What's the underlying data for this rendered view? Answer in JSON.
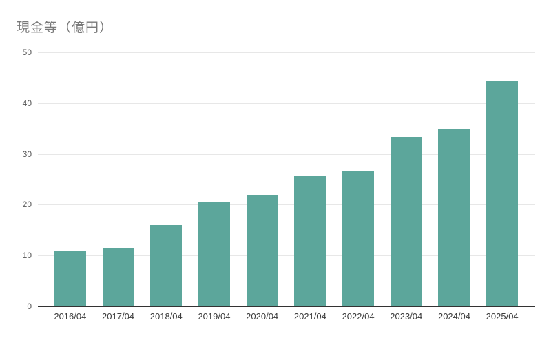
{
  "header": {
    "title": "現金等（億円）"
  },
  "colors": {
    "bar": "#5ca69b",
    "gridline": "#e7e7e7",
    "axis_line": "#333333",
    "title_text": "#7a7a7a",
    "ytick_text": "#555555",
    "xtick_text": "#3c3c3c",
    "background": "#ffffff"
  },
  "chart_data": {
    "type": "bar",
    "title": "現金等（億円）",
    "xlabel": "",
    "ylabel": "",
    "categories": [
      "2016/04",
      "2017/04",
      "2018/04",
      "2019/04",
      "2020/04",
      "2021/04",
      "2022/04",
      "2023/04",
      "2024/04",
      "2025/04"
    ],
    "values": [
      11.0,
      11.4,
      16.0,
      20.5,
      22.0,
      25.6,
      26.6,
      33.4,
      35.0,
      44.3
    ],
    "ylim": [
      0,
      50
    ],
    "yticks": [
      0,
      10,
      20,
      30,
      40,
      50
    ],
    "grid": true,
    "legend": false
  }
}
